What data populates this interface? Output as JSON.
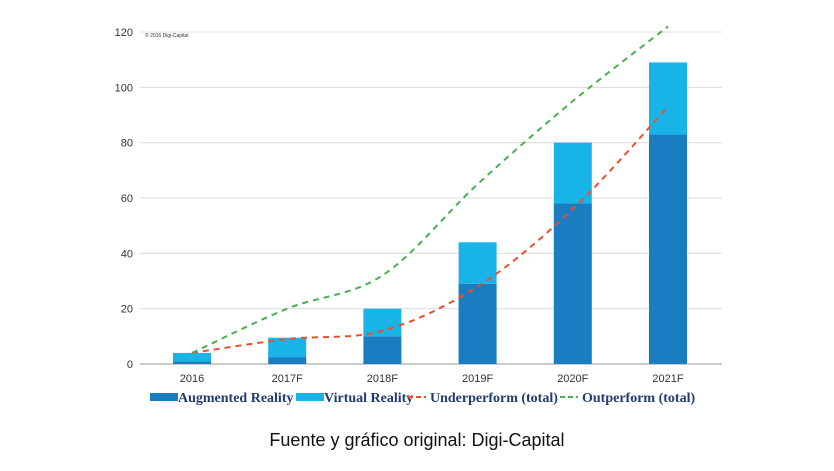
{
  "caption": "Fuente y gráfico original: Digi-Capital",
  "chart_data": {
    "type": "bar",
    "stacked": true,
    "copyright": "© 2016 Digi-Capital",
    "categories": [
      "2016",
      "2017F",
      "2018F",
      "2019F",
      "2020F",
      "2021F"
    ],
    "ylim": [
      0,
      120
    ],
    "yticks": [
      0,
      20,
      40,
      60,
      80,
      100,
      120
    ],
    "grid": true,
    "legend_position": "bottom",
    "series": [
      {
        "name": "Augmented Reality",
        "kind": "bar",
        "color": "#1a7cc1",
        "values": [
          1,
          2.5,
          10,
          29,
          58,
          83
        ]
      },
      {
        "name": "Virtual Reality",
        "kind": "bar",
        "color": "#18b4e8",
        "values": [
          3,
          7,
          10,
          15,
          22,
          26
        ]
      },
      {
        "name": "Underperform (total)",
        "kind": "dashed-line",
        "color": "#e8502e",
        "values": [
          4,
          9,
          12,
          28,
          56,
          93
        ]
      },
      {
        "name": "Outperform (total)",
        "kind": "dashed-line",
        "color": "#4cae52",
        "values": [
          4,
          20,
          32,
          65,
          95,
          122
        ]
      }
    ]
  }
}
